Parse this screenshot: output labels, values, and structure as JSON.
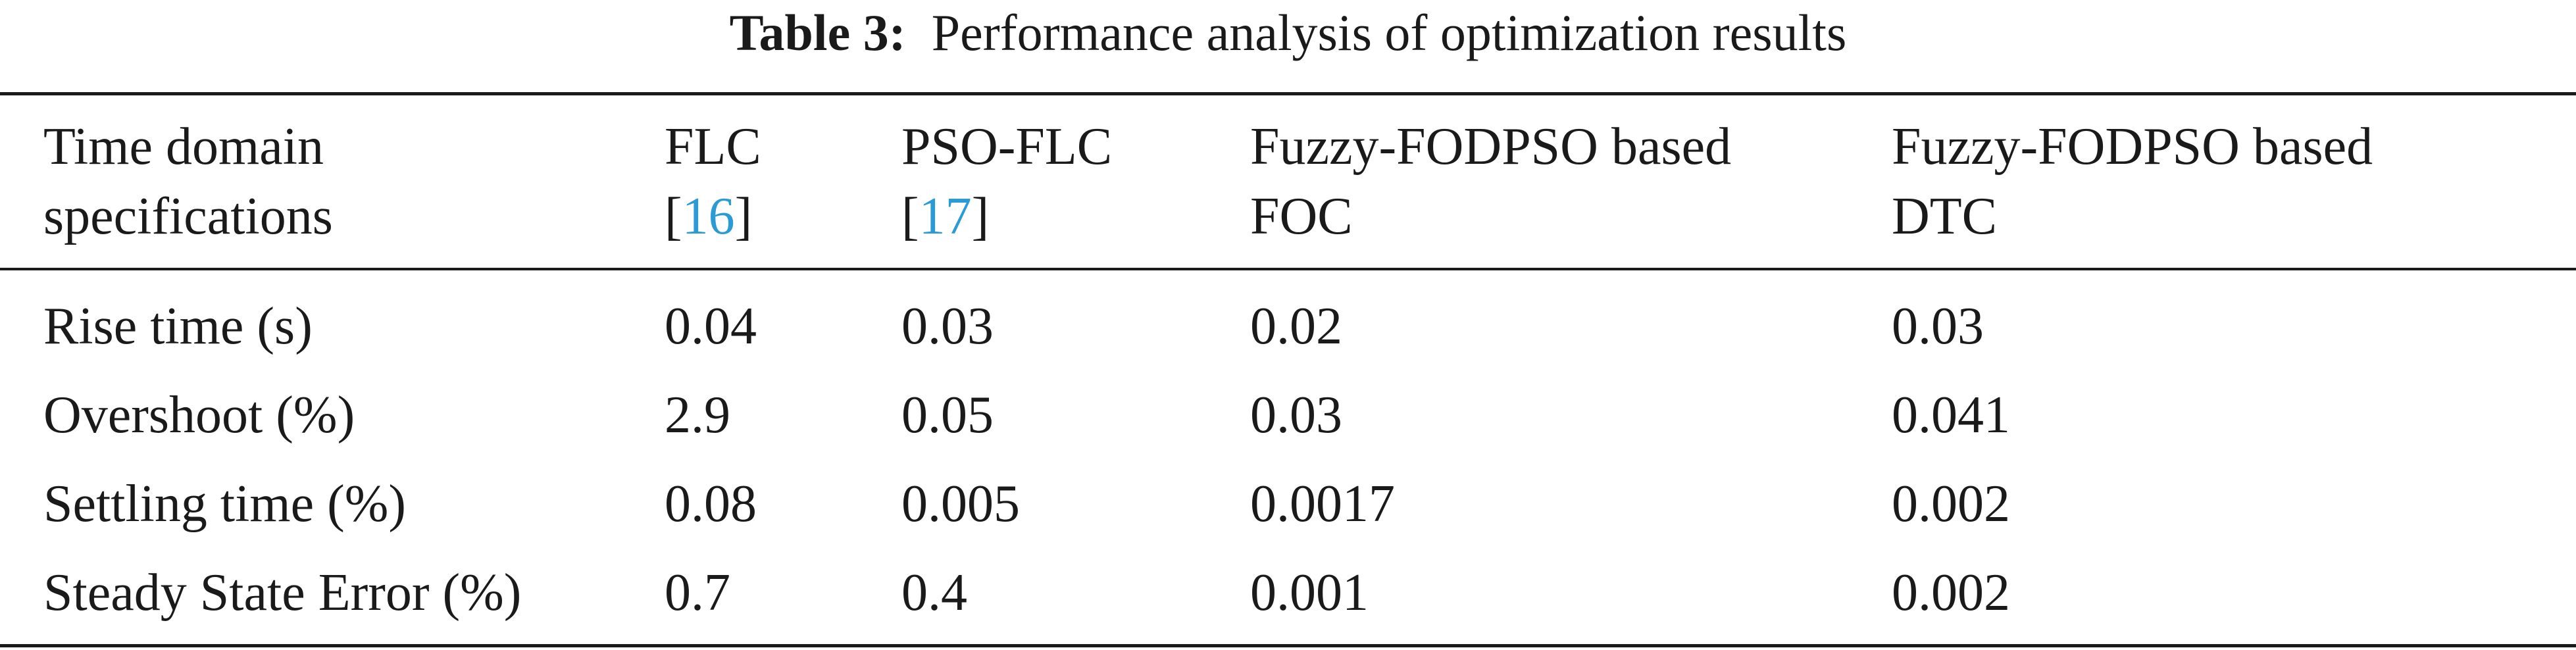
{
  "caption": {
    "label": "Table 3:",
    "text": "Performance analysis of optimization results"
  },
  "header": [
    {
      "line1": "Time domain",
      "line2": "specifications",
      "cite": ""
    },
    {
      "line1": "FLC",
      "line2_pre": "[",
      "cite": "16",
      "line2_post": "]"
    },
    {
      "line1": "PSO-FLC",
      "line2_pre": "[",
      "cite": "17",
      "line2_post": "]"
    },
    {
      "line1": "Fuzzy-FODPSO based",
      "line2": "FOC"
    },
    {
      "line1": "Fuzzy-FODPSO based",
      "line2": "DTC"
    }
  ],
  "rows": [
    {
      "spec": "Rise time (s)",
      "flc": "0.04",
      "pso_flc": "0.03",
      "foc": "0.02",
      "dtc": "0.03"
    },
    {
      "spec": "Overshoot (%)",
      "flc": "2.9",
      "pso_flc": "0.05",
      "foc": "0.03",
      "dtc": "0.041"
    },
    {
      "spec": "Settling time (%)",
      "flc": "0.08",
      "pso_flc": "0.005",
      "foc": "0.0017",
      "dtc": "0.002"
    },
    {
      "spec": "Steady State Error (%)",
      "flc": "0.7",
      "pso_flc": "0.4",
      "foc": "0.001",
      "dtc": "0.002"
    }
  ],
  "colors": {
    "text": "#1a1a1a",
    "citation": "#2b9bd6"
  }
}
